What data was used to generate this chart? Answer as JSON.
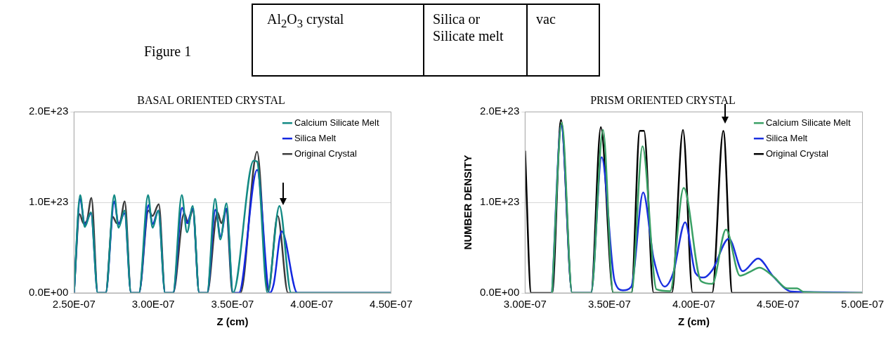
{
  "chart_data": [
    {
      "type": "other",
      "title": "Figure 1",
      "annotations": [
        "Al$_{2}$O$_{3}$ crystal",
        "Silica or Silicate melt",
        "vac"
      ]
    },
    {
      "type": "line",
      "title": "BASAL ORIENTED CRYSTAL",
      "xlabel": "Z (cm)",
      "xlim": [
        2.5e-07,
        4.5e-07
      ],
      "xticks": [
        {
          "value": 2.5e-07,
          "label": "2.50E-07"
        },
        {
          "value": 3e-07,
          "label": "3.00E-07"
        },
        {
          "value": 3.5e-07,
          "label": "3.50E-07"
        },
        {
          "value": 4e-07,
          "label": "4.00E-07"
        },
        {
          "value": 4.5e-07,
          "label": "4.50E-07"
        }
      ],
      "ylim": [
        0,
        2e+23
      ],
      "yticks": [
        {
          "value": 0,
          "label": "0.0E+00"
        },
        {
          "value": 1e+23,
          "label": "1.0E+23"
        },
        {
          "value": 2e+23,
          "label": "2.0E+23"
        }
      ],
      "grid": "y",
      "legend": "top right",
      "marker": "none",
      "series": [
        {
          "name": "Calcium Silicate Melt",
          "color": "#138a84",
          "x": [
            2.5e-07,
            2.539e-07,
            2.568e-07,
            2.607e-07,
            2.65e-07,
            2.7e-07,
            2.754e-07,
            2.781e-07,
            2.819e-07,
            2.86e-07,
            2.91e-07,
            2.967e-07,
            2.996e-07,
            3.032e-07,
            3.075e-07,
            3.125e-07,
            3.18e-07,
            3.213e-07,
            3.249e-07,
            3.29e-07,
            3.34e-07,
            3.39e-07,
            3.423e-07,
            3.462e-07,
            3.503e-07,
            3.633e-07,
            3.655e-07,
            3.72e-07,
            3.796e-07,
            3.87e-07,
            4.5e-07
          ],
          "values": [
            0,
            1.08e+23,
            7.3e+22,
            8.9e+22,
            0,
            0,
            1.08e+23,
            7.2e+22,
            9.1e+22,
            0,
            0,
            1.08e+23,
            7.2e+22,
            9.1e+22,
            0,
            0,
            1.08e+23,
            6.7e+22,
            9.6e+22,
            0,
            0,
            1.04e+23,
            5.9e+22,
            9.9e+22,
            0,
            1.46e+23,
            1.45e+23,
            0,
            9.6e+22,
            0,
            0
          ]
        },
        {
          "name": "Silica Melt",
          "color": "#1428e0",
          "x": [
            2.5e-07,
            2.539e-07,
            2.568e-07,
            2.607e-07,
            2.65e-07,
            2.7e-07,
            2.754e-07,
            2.781e-07,
            2.819e-07,
            2.86e-07,
            2.91e-07,
            2.97e-07,
            2.996e-07,
            3.032e-07,
            3.075e-07,
            3.125e-07,
            3.182e-07,
            3.213e-07,
            3.249e-07,
            3.29e-07,
            3.34e-07,
            3.392e-07,
            3.425e-07,
            3.462e-07,
            3.503e-07,
            3.54e-07,
            3.655e-07,
            3.735e-07,
            3.76e-07,
            3.81e-07,
            3.909e-07,
            4.5e-07
          ],
          "values": [
            0,
            1.04e+23,
            7.5e+22,
            8.8e+22,
            0,
            0,
            1.01e+23,
            7.6e+22,
            8.8e+22,
            0,
            0,
            9.7e+22,
            7.6e+22,
            9.1e+22,
            0,
            0,
            9.4e+22,
            7.7e+22,
            9.3e+22,
            0,
            0,
            9.2e+22,
            6.2e+22,
            9.3e+22,
            0,
            0,
            1.36e+23,
            0,
            1e+22,
            6.8e+22,
            0,
            0
          ]
        },
        {
          "name": "Original Crystal",
          "color": "#3c3c3c",
          "x": [
            2.5e-07,
            2.535e-07,
            2.56e-07,
            2.58e-07,
            2.61e-07,
            2.65e-07,
            2.7e-07,
            2.745e-07,
            2.77e-07,
            2.79e-07,
            2.82e-07,
            2.86e-07,
            2.91e-07,
            2.97e-07,
            2.995e-07,
            3.035e-07,
            3.075e-07,
            3.125e-07,
            3.195e-07,
            3.22e-07,
            3.25e-07,
            3.29e-07,
            3.34e-07,
            3.405e-07,
            3.43e-07,
            3.46e-07,
            3.5e-07,
            3.55e-07,
            3.655e-07,
            3.725e-07,
            3.785e-07,
            3.85e-07,
            4.5e-07
          ],
          "values": [
            0,
            8.7e+22,
            7.7e+22,
            7.9e+22,
            1.05e+23,
            0,
            0,
            8.4e+22,
            7.7e+22,
            7.8e+22,
            1.01e+23,
            0,
            0,
            9.1e+22,
            8.5e+22,
            9.8e+22,
            0,
            0,
            8.8e+22,
            7.7e+22,
            9.2e+22,
            0,
            0,
            8.9e+22,
            7.7e+22,
            9.2e+22,
            0,
            0,
            1.56e+23,
            2e+21,
            8.5e+22,
            0,
            0
          ]
        }
      ]
    },
    {
      "type": "line",
      "title": "PRISM ORIENTED CRYSTAL",
      "xlabel": "Z (cm)",
      "ylabel": "NUMBER DENSITY",
      "xlim": [
        3e-07,
        5e-07
      ],
      "xticks": [
        {
          "value": 3e-07,
          "label": "3.00E-07"
        },
        {
          "value": 3.5e-07,
          "label": "3.50E-07"
        },
        {
          "value": 4e-07,
          "label": "4.00E-07"
        },
        {
          "value": 4.5e-07,
          "label": "4.50E-07"
        },
        {
          "value": 5e-07,
          "label": "5.00E-07"
        }
      ],
      "ylim": [
        0,
        2e+23
      ],
      "yticks": [
        {
          "value": 0,
          "label": "0.0E+00"
        },
        {
          "value": 1e+23,
          "label": "1.0E+23"
        },
        {
          "value": 2e+23,
          "label": "2.0E+23"
        }
      ],
      "grid": "y",
      "legend": "top right",
      "marker": "none",
      "series": [
        {
          "name": "Calcium Silicate Melt",
          "color": "#3aa065",
          "x": [
            3.16e-07,
            3.218e-07,
            3.279e-07,
            3.391e-07,
            3.462e-07,
            3.523e-07,
            3.63e-07,
            3.696e-07,
            3.779e-07,
            3.86e-07,
            3.94e-07,
            4.043e-07,
            4.109e-07,
            4.191e-07,
            4.274e-07,
            4.34e-07,
            4.389e-07,
            4.472e-07,
            4.554e-07,
            4.612e-07,
            4.653e-07,
            5e-07
          ],
          "values": [
            0,
            1.88e+23,
            0,
            0,
            1.8e+23,
            0,
            0,
            1.62e+23,
            4e+21,
            2e+21,
            1.16e+23,
            1.3e+22,
            1e+22,
            7e+22,
            1.9e+22,
            2.4e+22,
            2.8e+22,
            1.8e+22,
            5e+21,
            5e+21,
            1e+21,
            0
          ]
        },
        {
          "name": "Silica Melt",
          "color": "#1a30e0",
          "x": [
            3.16e-07,
            3.215e-07,
            3.279e-07,
            3.391e-07,
            3.454e-07,
            3.531e-07,
            3.58e-07,
            3.63e-07,
            3.7e-07,
            3.762e-07,
            3.828e-07,
            3.878e-07,
            3.949e-07,
            4.01e-07,
            4.059e-07,
            4.109e-07,
            4.208e-07,
            4.29e-07,
            4.381e-07,
            4.472e-07,
            4.579e-07,
            4.686e-07,
            5e-07
          ],
          "values": [
            0,
            1.85e+23,
            0,
            0,
            1.5e+23,
            1.3e+22,
            3e+21,
            7e+21,
            1.11e+23,
            3.8e+22,
            7e+21,
            2.2e+22,
            7.8e+22,
            2.2e+22,
            1.7e+22,
            2.5e+22,
            6e+22,
            2.4e+22,
            3.8e+22,
            1.8e+22,
            1.5e+21,
            1e+21,
            0
          ]
        },
        {
          "name": "Original Crystal",
          "color": "#000000",
          "x": [
            3e-07,
            3.036e-07,
            3.16e-07,
            3.213e-07,
            3.279e-07,
            3.391e-07,
            3.449e-07,
            3.523e-07,
            3.63e-07,
            3.68e-07,
            3.705e-07,
            3.762e-07,
            3.87e-07,
            3.936e-07,
            3.993e-07,
            4.109e-07,
            4.175e-07,
            4.228e-07,
            5e-07
          ],
          "values": [
            1.57e+23,
            0,
            0,
            1.91e+23,
            0,
            0,
            1.83e+23,
            0,
            0,
            1.79e+23,
            1.79e+23,
            0,
            0,
            1.8e+23,
            0,
            0,
            1.79e+23,
            0,
            0
          ]
        }
      ]
    }
  ]
}
